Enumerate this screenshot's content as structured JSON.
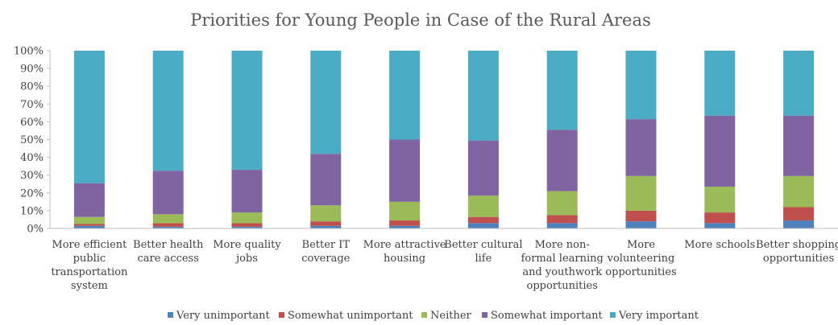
{
  "chart_data": {
    "type": "bar",
    "stacked": true,
    "percent": true,
    "title": "Priorities for Young People in Case of the Rural Areas",
    "ylim": [
      0,
      100
    ],
    "y_ticks": [
      "0%",
      "10%",
      "20%",
      "30%",
      "40%",
      "50%",
      "60%",
      "70%",
      "80%",
      "90%",
      "100%"
    ],
    "grid": false,
    "legend_position": "bottom",
    "categories": [
      [
        "More efficient",
        "public",
        "transportation",
        "system"
      ],
      [
        "Better health",
        "care access"
      ],
      [
        "More quality",
        "jobs"
      ],
      [
        "Better IT",
        "coverage"
      ],
      [
        "More attractive",
        "housing"
      ],
      [
        "Better cultural",
        "life"
      ],
      [
        "More non-",
        "formal learning",
        "and youthwork",
        "opportunities"
      ],
      [
        "More",
        "volunteering",
        "opportunities"
      ],
      [
        "More schools"
      ],
      [
        "Better shopping",
        "opportunities"
      ]
    ],
    "series": [
      {
        "name": "Very unimportant",
        "color": "#4F81BD",
        "values": [
          1.5,
          1.0,
          1.0,
          1.5,
          1.5,
          3.0,
          3.0,
          4.0,
          3.0,
          4.5
        ]
      },
      {
        "name": "Somewhat unimportant",
        "color": "#C0504D",
        "values": [
          1.0,
          2.0,
          2.0,
          2.5,
          3.0,
          3.5,
          4.5,
          6.0,
          6.0,
          7.5
        ]
      },
      {
        "name": "Neither",
        "color": "#9BBB59",
        "values": [
          4.0,
          5.0,
          6.0,
          9.0,
          10.5,
          12.0,
          13.5,
          19.5,
          14.5,
          17.5
        ]
      },
      {
        "name": "Somewhat important",
        "color": "#8064A2",
        "values": [
          19.0,
          24.5,
          24.0,
          29.0,
          35.0,
          31.0,
          34.5,
          32.0,
          40.0,
          34.0
        ]
      },
      {
        "name": "Very important",
        "color": "#4BACC6",
        "values": [
          74.5,
          67.5,
          67.0,
          58.0,
          50.0,
          50.5,
          44.5,
          38.5,
          36.5,
          36.5
        ]
      }
    ]
  }
}
